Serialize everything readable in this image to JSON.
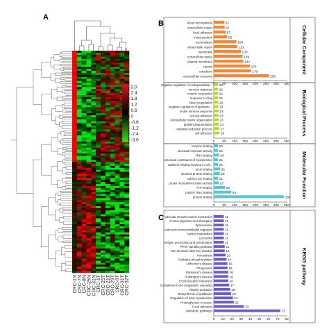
{
  "panels": {
    "a": "A",
    "b": "B",
    "c": "C"
  },
  "heatmap": {
    "samples": [
      "CRC-1N",
      "CRC-7N",
      "CRC-8N",
      "CRC-25N",
      "CRC-31N",
      "CRC-1T",
      "CRC-25T",
      "CRC-21T",
      "CRC-29T",
      "CRC-8T",
      "CRC-31T",
      "CRC-32T"
    ],
    "scale": [
      "3.0",
      "2.4",
      "1.8",
      "1.2",
      "0.6",
      "0",
      "-0.6",
      "-1.2",
      "-2.4",
      "-3.0"
    ],
    "colors": {
      "high": "#e8101a",
      "low": "#39e61c",
      "mid": "#000000"
    }
  },
  "chart_data": [
    {
      "type": "bar",
      "title": "Cellular Component",
      "color": "#f0883a",
      "categories": [
        "blood microparticle",
        "extracellular matrix",
        "focal adhesion",
        "mitochondrion",
        "nucleoplasm",
        "extracellular region",
        "membrane",
        "extracellular space",
        "plasma membrane",
        "cytosol",
        "cytoplasm",
        "extracellular exosome"
      ],
      "values": [
        51,
        52,
        57,
        65,
        109,
        113,
        130,
        139,
        142,
        174,
        179,
        265
      ],
      "xlim": [
        0,
        350
      ],
      "ticks": [
        0,
        50,
        100,
        150,
        200,
        250,
        300,
        350
      ]
    },
    {
      "type": "bar",
      "title": "Biological Process",
      "color": "#bcd432",
      "categories": [
        "negative regulation of endopeptidase...",
        "immune response",
        "muscle contraction",
        "response to drug",
        "blood coagulation",
        "negative regulation of apoptotic...",
        "innate immune response",
        "cell-cell adhesion",
        "extracellular matrix organization",
        "platelet degranulation",
        "oxidation-reduction process",
        "cell adhesion"
      ],
      "values": [
        20,
        21,
        21,
        21,
        22,
        22,
        23,
        23,
        23,
        24,
        27,
        28
      ],
      "xlim": [
        0,
        350
      ],
      "ticks": [
        0,
        50,
        100,
        150,
        200,
        250,
        300,
        350
      ]
    },
    {
      "type": "bar",
      "title": "Molecular Function",
      "color": "#5bc6cf",
      "categories": [
        "enzyme binding",
        "structural molecule activity",
        "RNA binding",
        "structural constituent of cytoskeleton",
        "cadherin binding involved in cell...",
        "actin binding",
        "identical protein binding",
        "calcium ion binding",
        "protein homodimerization activity",
        "ATP binding",
        "poly(A) RNA binding",
        "protein binding"
      ],
      "values": [
        20,
        21,
        26,
        21,
        21,
        31,
        29,
        21,
        23,
        54,
        84,
        336
      ],
      "xlim": [
        0,
        350
      ],
      "ticks": [
        0,
        50,
        100,
        150,
        200,
        250,
        300,
        350
      ]
    },
    {
      "type": "bar",
      "title": "KEGG pathway",
      "color": "#6b5dc6",
      "categories": [
        "Vascular smooth muscle contraction",
        "Protein digestion and absorption",
        "Spliceosome",
        "Leukocyte transendothelial migration",
        "Carbon metabolism",
        "Lysosome",
        "Antigen processing and presentation",
        "PPAR signaling pathway",
        "Non-alcoholic fatty liver disease",
        "Amoebiasis",
        "Oxidative phosphorylation",
        "Alzheimer's disease",
        "Phagosome",
        "Parkinson's disease",
        "Huntington's disease",
        "ECM-receptor interaction",
        "Complement and coagulation cascades",
        "Platelet activation",
        "Biosynthesis of antibiotics",
        "Regulation of actin cytoskeleton",
        "Proteoglycans in cancer",
        "Focal adhesion",
        "Metabolic pathways"
      ],
      "values": [
        11,
        11,
        11,
        11,
        11,
        11,
        11,
        12,
        12,
        13,
        14,
        15,
        15,
        16,
        16,
        16,
        17,
        18,
        19,
        21,
        22,
        33,
        73
      ],
      "xlim": [
        0,
        80
      ],
      "ticks": [
        0,
        10,
        20,
        30,
        40,
        50,
        60,
        70,
        80
      ]
    }
  ]
}
